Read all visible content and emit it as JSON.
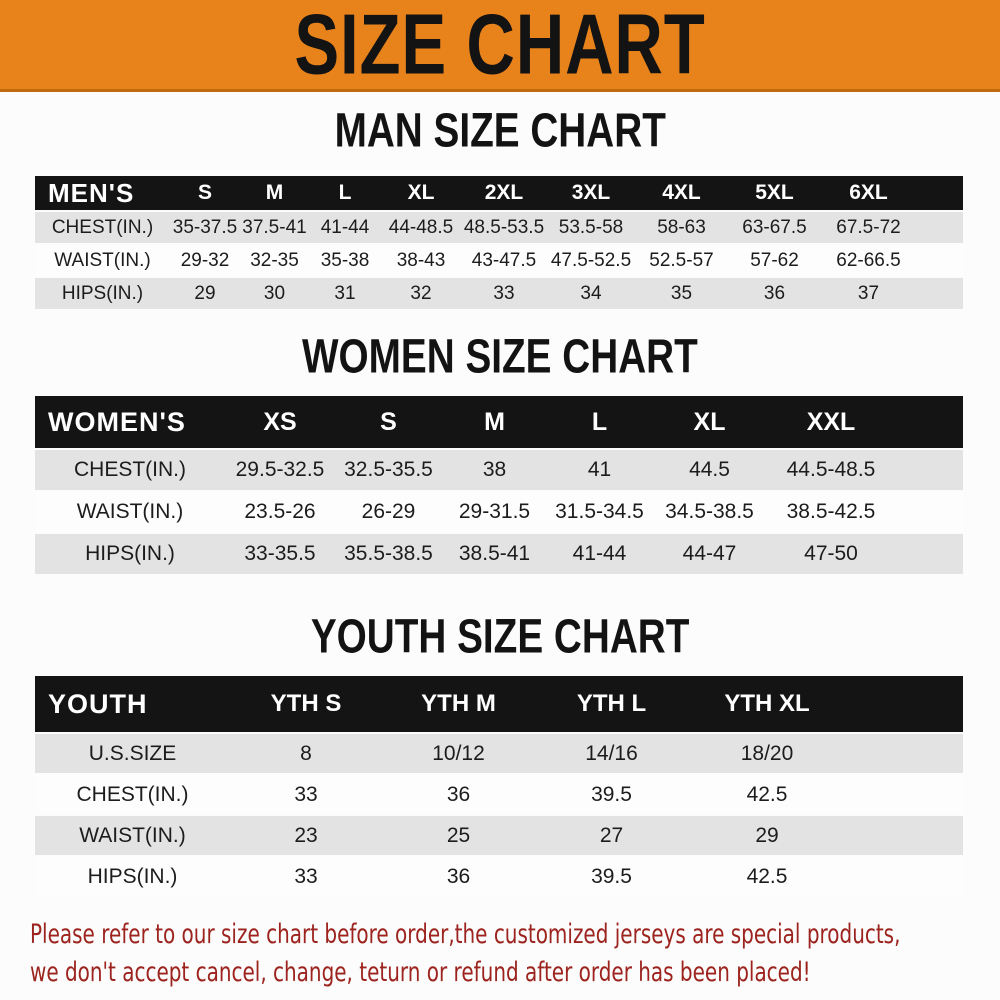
{
  "banner": {
    "title": "SIZE CHART"
  },
  "sections": {
    "man": {
      "heading": "MAN SIZE CHART",
      "table": {
        "label": "MEN'S",
        "columns": [
          "S",
          "M",
          "L",
          "XL",
          "2XL",
          "3XL",
          "4XL",
          "5XL",
          "6XL"
        ],
        "rows": [
          {
            "label": "CHEST(IN.)",
            "values": [
              "35-37.5",
              "37.5-41",
              "41-44",
              "44-48.5",
              "48.5-53.5",
              "53.5-58",
              "58-63",
              "63-67.5",
              "67.5-72"
            ]
          },
          {
            "label": "WAIST(IN.)",
            "values": [
              "29-32",
              "32-35",
              "35-38",
              "38-43",
              "43-47.5",
              "47.5-52.5",
              "52.5-57",
              "57-62",
              "62-66.5"
            ]
          },
          {
            "label": "HIPS(IN.)",
            "values": [
              "29",
              "30",
              "31",
              "32",
              "33",
              "34",
              "35",
              "36",
              "37"
            ]
          }
        ]
      }
    },
    "women": {
      "heading": "WOMEN SIZE CHART",
      "table": {
        "label": "WOMEN'S",
        "columns": [
          "XS",
          "S",
          "M",
          "L",
          "XL",
          "XXL"
        ],
        "rows": [
          {
            "label": "CHEST(IN.)",
            "values": [
              "29.5-32.5",
              "32.5-35.5",
              "38",
              "41",
              "44.5",
              "44.5-48.5"
            ]
          },
          {
            "label": "WAIST(IN.)",
            "values": [
              "23.5-26",
              "26-29",
              "29-31.5",
              "31.5-34.5",
              "34.5-38.5",
              "38.5-42.5"
            ]
          },
          {
            "label": "HIPS(IN.)",
            "values": [
              "33-35.5",
              "35.5-38.5",
              "38.5-41",
              "41-44",
              "44-47",
              "47-50"
            ]
          }
        ]
      }
    },
    "youth": {
      "heading": "YOUTH SIZE CHART",
      "table": {
        "label": "YOUTH",
        "columns": [
          "YTH S",
          "YTH M",
          "YTH L",
          "YTH XL"
        ],
        "rows": [
          {
            "label": "U.S.SIZE",
            "values": [
              "8",
              "10/12",
              "14/16",
              "18/20"
            ]
          },
          {
            "label": "CHEST(IN.)",
            "values": [
              "33",
              "36",
              "39.5",
              "42.5"
            ]
          },
          {
            "label": "WAIST(IN.)",
            "values": [
              "23",
              "25",
              "27",
              "29"
            ]
          },
          {
            "label": "HIPS(IN.)",
            "values": [
              "33",
              "36",
              "39.5",
              "42.5"
            ]
          }
        ]
      }
    }
  },
  "footer": {
    "line1": "Please refer to our size chart before order,the customized jerseys are special products,",
    "line2": "we don't accept cancel, change, teturn or refund after order has been placed!"
  },
  "colors": {
    "banner_orange": "#E8831C",
    "banner_edge": "#C06A10",
    "header_black": "#141414",
    "header_text": "#FFFFFF",
    "row_gray": "#E3E3E3",
    "row_white": "#FDFDFD",
    "heading_black": "#131313",
    "footer_red": "#9C231E"
  }
}
